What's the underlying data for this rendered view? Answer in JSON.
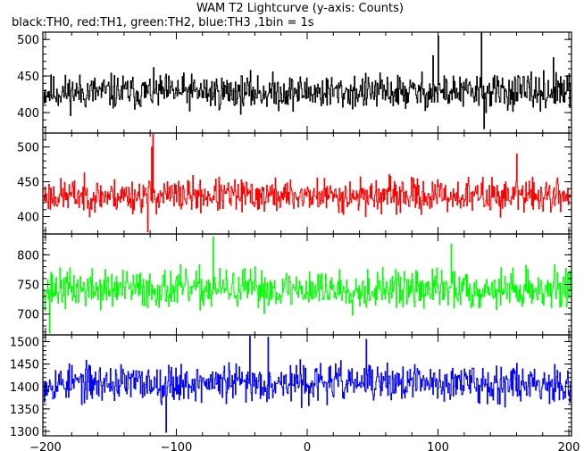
{
  "chart_data": {
    "type": "line",
    "title": "WAM T2 Lightcurve (y-axis: Counts)",
    "subtitle": "black:TH0, red:TH1, green:TH2, blue:TH3 ,1bin = 1s",
    "xlim": [
      -202,
      202
    ],
    "x_ticks": [
      -200,
      -100,
      0,
      100,
      200
    ],
    "x_tick_labels": [
      "−200",
      "−100",
      "0",
      "100",
      "200"
    ],
    "bin_seconds": 1,
    "grid": false,
    "panels": [
      {
        "series": "TH0",
        "color": "#000000",
        "ylim": [
          372,
          510
        ],
        "y_ticks": [
          400,
          450,
          500
        ],
        "y_tick_labels": [
          "400",
          "450",
          "500"
        ],
        "baseline": 428,
        "noise": 22,
        "spikes": [
          {
            "x": 100,
            "y": 505
          },
          {
            "x": 133,
            "y": 510
          },
          {
            "x": 135,
            "y": 378
          },
          {
            "x": 96,
            "y": 478
          },
          {
            "x": 188,
            "y": 475
          }
        ],
        "seed": 11
      },
      {
        "series": "TH1",
        "color": "#ff0000",
        "ylim": [
          375,
          520
        ],
        "y_ticks": [
          400,
          450,
          500
        ],
        "y_tick_labels": [
          "400",
          "450",
          "500"
        ],
        "baseline": 430,
        "noise": 22,
        "spikes": [
          {
            "x": -118,
            "y": 518
          },
          {
            "x": -119,
            "y": 500
          },
          {
            "x": -122,
            "y": 378
          },
          {
            "x": 160,
            "y": 490
          }
        ],
        "seed": 23
      },
      {
        "series": "TH2",
        "color": "#00ff00",
        "ylim": [
          665,
          835
        ],
        "y_ticks": [
          700,
          750,
          800
        ],
        "y_tick_labels": [
          "700",
          "750",
          "800"
        ],
        "baseline": 742,
        "noise": 30,
        "spikes": [
          {
            "x": -72,
            "y": 830
          },
          {
            "x": 110,
            "y": 818
          },
          {
            "x": -197,
            "y": 668
          }
        ],
        "seed": 37
      },
      {
        "series": "TH3",
        "color": "#0000ff",
        "ylim": [
          1290,
          1515
        ],
        "y_ticks": [
          1300,
          1350,
          1400,
          1450,
          1500
        ],
        "y_tick_labels": [
          "1300",
          "1350",
          "1400",
          "1450",
          "1500"
        ],
        "baseline": 1408,
        "noise": 38,
        "spikes": [
          {
            "x": -44,
            "y": 1512
          },
          {
            "x": -30,
            "y": 1510
          },
          {
            "x": 45,
            "y": 1505
          },
          {
            "x": -108,
            "y": 1298
          }
        ],
        "seed": 53
      }
    ]
  }
}
